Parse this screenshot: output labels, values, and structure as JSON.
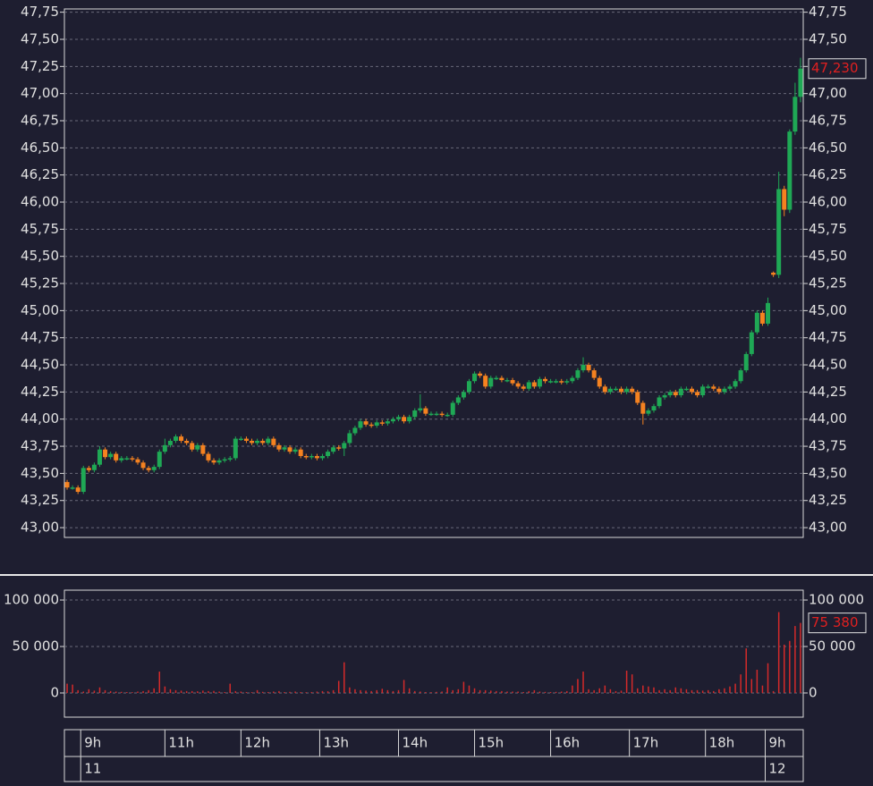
{
  "chart_data": [
    {
      "type": "candlestick",
      "up_color": "#1fa855",
      "down_color": "#f58220",
      "open": [
        43.42,
        43.37,
        43.37,
        43.33,
        43.55,
        43.53,
        43.58,
        43.72,
        43.65,
        43.68,
        43.62,
        43.64,
        43.64,
        43.63,
        43.6,
        43.55,
        43.53,
        43.56,
        43.7,
        43.76,
        43.8,
        43.84,
        43.8,
        43.78,
        43.72,
        43.76,
        43.68,
        43.62,
        43.6,
        43.62,
        43.63,
        43.64,
        43.82,
        43.82,
        43.8,
        43.78,
        43.8,
        43.78,
        43.82,
        43.76,
        43.72,
        43.74,
        43.7,
        43.72,
        43.66,
        43.65,
        43.66,
        43.64,
        43.66,
        43.7,
        43.74,
        43.73,
        43.78,
        43.87,
        43.92,
        43.98,
        43.95,
        43.94,
        43.97,
        43.96,
        43.98,
        44.0,
        44.02,
        43.98,
        44.02,
        44.08,
        44.1,
        44.05,
        44.05,
        44.05,
        44.04,
        44.04,
        44.15,
        44.2,
        44.25,
        44.35,
        44.42,
        44.4,
        44.3,
        44.38,
        44.38,
        44.36,
        44.36,
        44.33,
        44.3,
        44.28,
        44.34,
        44.3,
        44.37,
        44.35,
        44.35,
        44.35,
        44.34,
        44.35,
        44.38,
        44.45,
        44.5,
        44.45,
        44.38,
        44.3,
        44.25,
        44.28,
        44.28,
        44.25,
        44.28,
        44.25,
        44.15,
        44.05,
        44.08,
        44.12,
        44.2,
        44.22,
        44.25,
        44.22,
        44.28,
        44.28,
        44.25,
        44.22,
        44.3,
        44.3,
        44.28,
        44.25,
        44.28,
        44.3,
        44.35,
        44.45,
        44.6,
        44.8,
        44.98,
        44.88,
        45.35,
        45.33,
        46.12,
        45.93,
        46.65,
        46.97
      ],
      "high": [
        43.44,
        43.39,
        43.39,
        43.57,
        43.57,
        43.6,
        43.75,
        43.74,
        43.7,
        43.7,
        43.66,
        43.66,
        43.66,
        43.65,
        43.62,
        43.57,
        43.58,
        43.72,
        43.82,
        43.82,
        43.86,
        43.86,
        43.82,
        43.8,
        43.78,
        43.78,
        43.7,
        43.64,
        43.64,
        43.65,
        43.66,
        43.84,
        43.84,
        43.84,
        43.82,
        43.82,
        43.82,
        43.84,
        43.84,
        43.78,
        43.76,
        43.76,
        43.74,
        43.74,
        43.68,
        43.68,
        43.68,
        43.68,
        43.72,
        43.76,
        43.76,
        43.8,
        43.9,
        43.94,
        44.0,
        44.0,
        43.97,
        43.99,
        43.99,
        44.0,
        44.02,
        44.04,
        44.04,
        44.04,
        44.1,
        44.23,
        44.12,
        44.07,
        44.07,
        44.07,
        44.06,
        44.17,
        44.22,
        44.27,
        44.37,
        44.44,
        44.44,
        44.42,
        44.4,
        44.4,
        44.4,
        44.38,
        44.38,
        44.35,
        44.32,
        44.36,
        44.36,
        44.39,
        44.39,
        44.37,
        44.37,
        44.37,
        44.37,
        44.4,
        44.47,
        44.57,
        44.52,
        44.47,
        44.4,
        44.32,
        44.3,
        44.3,
        44.3,
        44.3,
        44.3,
        44.27,
        44.17,
        44.1,
        44.14,
        44.22,
        44.24,
        44.27,
        44.27,
        44.3,
        44.3,
        44.3,
        44.27,
        44.32,
        44.32,
        44.32,
        44.3,
        44.3,
        44.32,
        44.37,
        44.47,
        44.62,
        44.82,
        45.0,
        45.0,
        45.12,
        45.36,
        46.28,
        46.15,
        46.67,
        47.1,
        47.33
      ],
      "low": [
        43.35,
        43.35,
        43.31,
        43.31,
        43.51,
        43.51,
        43.56,
        43.63,
        43.63,
        43.6,
        43.6,
        43.62,
        43.61,
        43.58,
        43.53,
        43.51,
        43.51,
        43.54,
        43.68,
        43.74,
        43.78,
        43.78,
        43.76,
        43.7,
        43.7,
        43.66,
        43.6,
        43.58,
        43.58,
        43.6,
        43.61,
        43.62,
        43.8,
        43.78,
        43.76,
        43.76,
        43.76,
        43.76,
        43.74,
        43.7,
        43.7,
        43.68,
        43.68,
        43.64,
        43.63,
        43.63,
        43.62,
        43.62,
        43.64,
        43.68,
        43.71,
        43.66,
        43.76,
        43.85,
        43.9,
        43.93,
        43.92,
        43.92,
        43.94,
        43.94,
        43.96,
        43.98,
        43.96,
        43.96,
        44.0,
        44.06,
        44.03,
        44.03,
        44.03,
        44.02,
        44.02,
        44.02,
        44.13,
        44.18,
        44.23,
        44.33,
        44.38,
        44.28,
        44.28,
        44.36,
        44.34,
        44.34,
        44.31,
        44.28,
        44.26,
        44.26,
        44.28,
        44.28,
        44.33,
        44.33,
        44.33,
        44.32,
        44.32,
        44.33,
        44.36,
        44.43,
        44.43,
        44.36,
        44.28,
        44.23,
        44.23,
        44.26,
        44.23,
        44.23,
        44.23,
        44.13,
        43.95,
        44.03,
        44.06,
        44.1,
        44.18,
        44.2,
        44.2,
        44.2,
        44.26,
        44.23,
        44.2,
        44.2,
        44.28,
        44.26,
        44.23,
        44.23,
        44.26,
        44.28,
        44.33,
        44.43,
        44.58,
        44.78,
        44.86,
        44.86,
        45.31,
        45.3,
        45.87,
        45.9,
        46.62,
        46.92
      ],
      "close": [
        43.37,
        43.37,
        43.33,
        43.55,
        43.53,
        43.58,
        43.72,
        43.65,
        43.68,
        43.62,
        43.64,
        43.64,
        43.63,
        43.6,
        43.55,
        43.53,
        43.56,
        43.7,
        43.76,
        43.8,
        43.84,
        43.8,
        43.78,
        43.72,
        43.76,
        43.68,
        43.62,
        43.6,
        43.62,
        43.63,
        43.64,
        43.82,
        43.82,
        43.8,
        43.78,
        43.8,
        43.78,
        43.82,
        43.76,
        43.72,
        43.74,
        43.7,
        43.72,
        43.66,
        43.65,
        43.66,
        43.64,
        43.66,
        43.7,
        43.74,
        43.73,
        43.78,
        43.87,
        43.92,
        43.98,
        43.95,
        43.94,
        43.97,
        43.96,
        43.98,
        44.0,
        44.02,
        43.98,
        44.02,
        44.08,
        44.1,
        44.05,
        44.05,
        44.05,
        44.04,
        44.04,
        44.15,
        44.2,
        44.25,
        44.35,
        44.42,
        44.4,
        44.3,
        44.38,
        44.38,
        44.36,
        44.36,
        44.33,
        44.3,
        44.28,
        44.34,
        44.3,
        44.37,
        44.35,
        44.35,
        44.35,
        44.34,
        44.35,
        44.38,
        44.45,
        44.5,
        44.45,
        44.38,
        44.3,
        44.25,
        44.28,
        44.28,
        44.25,
        44.28,
        44.25,
        44.15,
        44.05,
        44.08,
        44.12,
        44.2,
        44.22,
        44.25,
        44.22,
        44.28,
        44.28,
        44.25,
        44.22,
        44.3,
        44.3,
        44.28,
        44.25,
        44.28,
        44.3,
        44.35,
        44.45,
        44.6,
        44.8,
        44.98,
        44.88,
        45.07,
        45.33,
        46.12,
        45.93,
        46.65,
        46.97,
        47.23
      ],
      "last_label": "47,230",
      "ylim": [
        42.91,
        47.78
      ],
      "yticks": [
        {
          "value": 43.0,
          "label": "43,00"
        },
        {
          "value": 43.25,
          "label": "43,25"
        },
        {
          "value": 43.5,
          "label": "43,50"
        },
        {
          "value": 43.75,
          "label": "43,75"
        },
        {
          "value": 44.0,
          "label": "44,00"
        },
        {
          "value": 44.25,
          "label": "44,25"
        },
        {
          "value": 44.5,
          "label": "44,50"
        },
        {
          "value": 44.75,
          "label": "44,75"
        },
        {
          "value": 45.0,
          "label": "45,00"
        },
        {
          "value": 45.25,
          "label": "45,25"
        },
        {
          "value": 45.5,
          "label": "45,50"
        },
        {
          "value": 45.75,
          "label": "45,75"
        },
        {
          "value": 46.0,
          "label": "46,00"
        },
        {
          "value": 46.25,
          "label": "46,25"
        },
        {
          "value": 46.5,
          "label": "46,50"
        },
        {
          "value": 46.75,
          "label": "46,75"
        },
        {
          "value": 47.0,
          "label": "47,00"
        },
        {
          "value": 47.25,
          "label": "47,25"
        },
        {
          "value": 47.5,
          "label": "47,50"
        },
        {
          "value": 47.75,
          "label": "47,75"
        }
      ],
      "grid": true
    },
    {
      "type": "bar",
      "color": "#d42a2a",
      "values": [
        10000,
        9000,
        3000,
        1500,
        4000,
        2500,
        6000,
        3000,
        2000,
        1500,
        1200,
        1000,
        800,
        1500,
        2000,
        3000,
        5000,
        23000,
        7000,
        4000,
        3000,
        2500,
        2000,
        2000,
        1800,
        2500,
        2000,
        2200,
        1500,
        1000,
        10000,
        2000,
        1500,
        1000,
        800,
        3000,
        1200,
        1000,
        1500,
        2000,
        1000,
        1200,
        1500,
        1000,
        800,
        1000,
        1500,
        2000,
        1800,
        3000,
        13000,
        33000,
        6000,
        4000,
        3000,
        2500,
        2000,
        3000,
        4500,
        3000,
        2000,
        3000,
        14000,
        5000,
        2000,
        1500,
        1000,
        800,
        1200,
        1500,
        6000,
        3000,
        4000,
        12000,
        8000,
        5000,
        3000,
        3000,
        2500,
        2000,
        2000,
        1500,
        1500,
        1500,
        1000,
        2000,
        3000,
        1500,
        1200,
        1000,
        1200,
        1500,
        2000,
        8000,
        15000,
        23000,
        4000,
        3000,
        5000,
        8000,
        4000,
        2000,
        2500,
        24000,
        20000,
        5000,
        8000,
        7000,
        6000,
        3000,
        4000,
        3000,
        6000,
        5000,
        4000,
        3000,
        3000,
        2500,
        3000,
        2000,
        4000,
        5000,
        7000,
        10000,
        20000,
        48000,
        15000,
        25000,
        8000,
        32000,
        2000,
        87000,
        52000,
        56000,
        72000,
        75380
      ],
      "last_label": "75 380",
      "ylim": [
        -26000,
        110600
      ],
      "yticks": [
        0,
        {
          "value": 50000,
          "label": "50 000"
        },
        {
          "value": 100000,
          "label": "100 000"
        }
      ],
      "grid": true,
      "xticks": [
        {
          "value": 2.5,
          "label": "9h"
        },
        {
          "value": 18,
          "label": "11h"
        },
        {
          "value": 32,
          "label": "12h"
        },
        {
          "value": 46.5,
          "label": "13h"
        },
        {
          "value": 61,
          "label": "14h"
        },
        {
          "value": 75,
          "label": "15h"
        },
        {
          "value": 89,
          "label": "16h"
        },
        {
          "value": 103.5,
          "label": "17h"
        },
        {
          "value": 117.5,
          "label": "18h"
        },
        {
          "value": 128.5,
          "label": "9h"
        }
      ],
      "day_ticks": [
        {
          "value": 2.5,
          "label": "11"
        },
        {
          "value": 128.5,
          "label": "12"
        }
      ]
    }
  ]
}
